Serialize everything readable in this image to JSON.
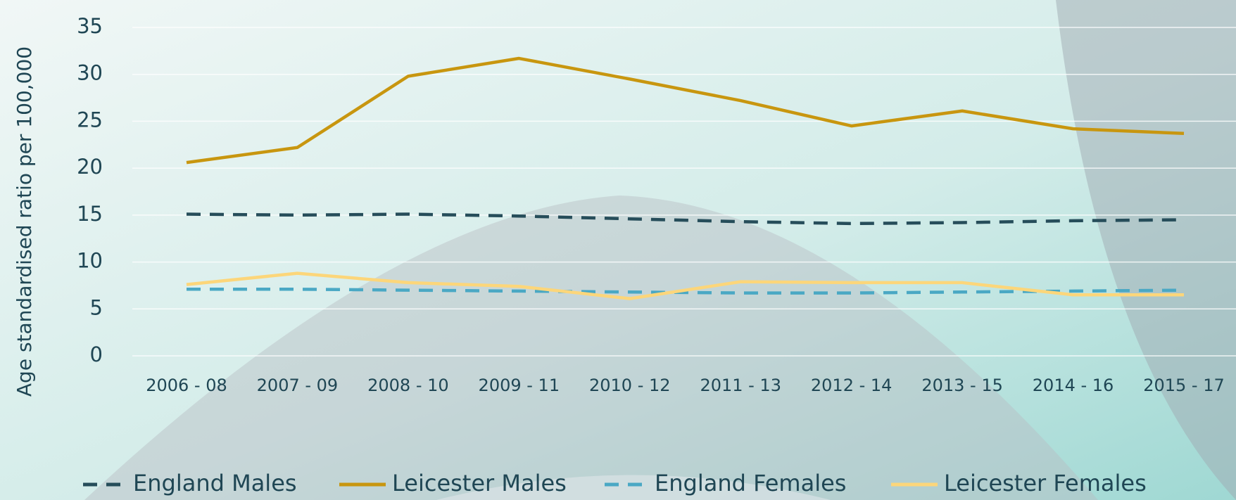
{
  "chart_data": {
    "type": "line",
    "y_axis_label": "Age standardised ratio per 100,000",
    "categories": [
      "2006 - 08",
      "2007 - 09",
      "2008 - 10",
      "2009 - 11",
      "2010 - 12",
      "2011 - 13",
      "2012 - 14",
      "2013 - 15",
      "2014 - 16",
      "2015 - 17"
    ],
    "series": [
      {
        "name": "England Males",
        "color": "#264d5a",
        "dashed": true,
        "values": [
          15.1,
          15.0,
          15.1,
          14.9,
          14.6,
          14.3,
          14.1,
          14.2,
          14.4,
          14.5
        ]
      },
      {
        "name": "Leicester Males",
        "color": "#c8960f",
        "dashed": false,
        "values": [
          20.6,
          22.2,
          29.8,
          31.7,
          29.5,
          27.2,
          24.5,
          26.1,
          24.2,
          23.7
        ]
      },
      {
        "name": "England Females",
        "color": "#4aa8c4",
        "dashed": true,
        "values": [
          7.1,
          7.1,
          7.0,
          6.9,
          6.8,
          6.7,
          6.7,
          6.8,
          6.9,
          7.0
        ]
      },
      {
        "name": "Leicester Females",
        "color": "#fcd67a",
        "dashed": false,
        "values": [
          7.6,
          8.8,
          7.8,
          7.4,
          6.1,
          7.9,
          7.8,
          7.8,
          6.5,
          6.5
        ]
      }
    ],
    "ylim": [
      0,
      35
    ],
    "yticks": [
      0,
      5,
      10,
      15,
      20,
      25,
      30,
      35
    ],
    "grid": true,
    "legend": "bottom"
  }
}
